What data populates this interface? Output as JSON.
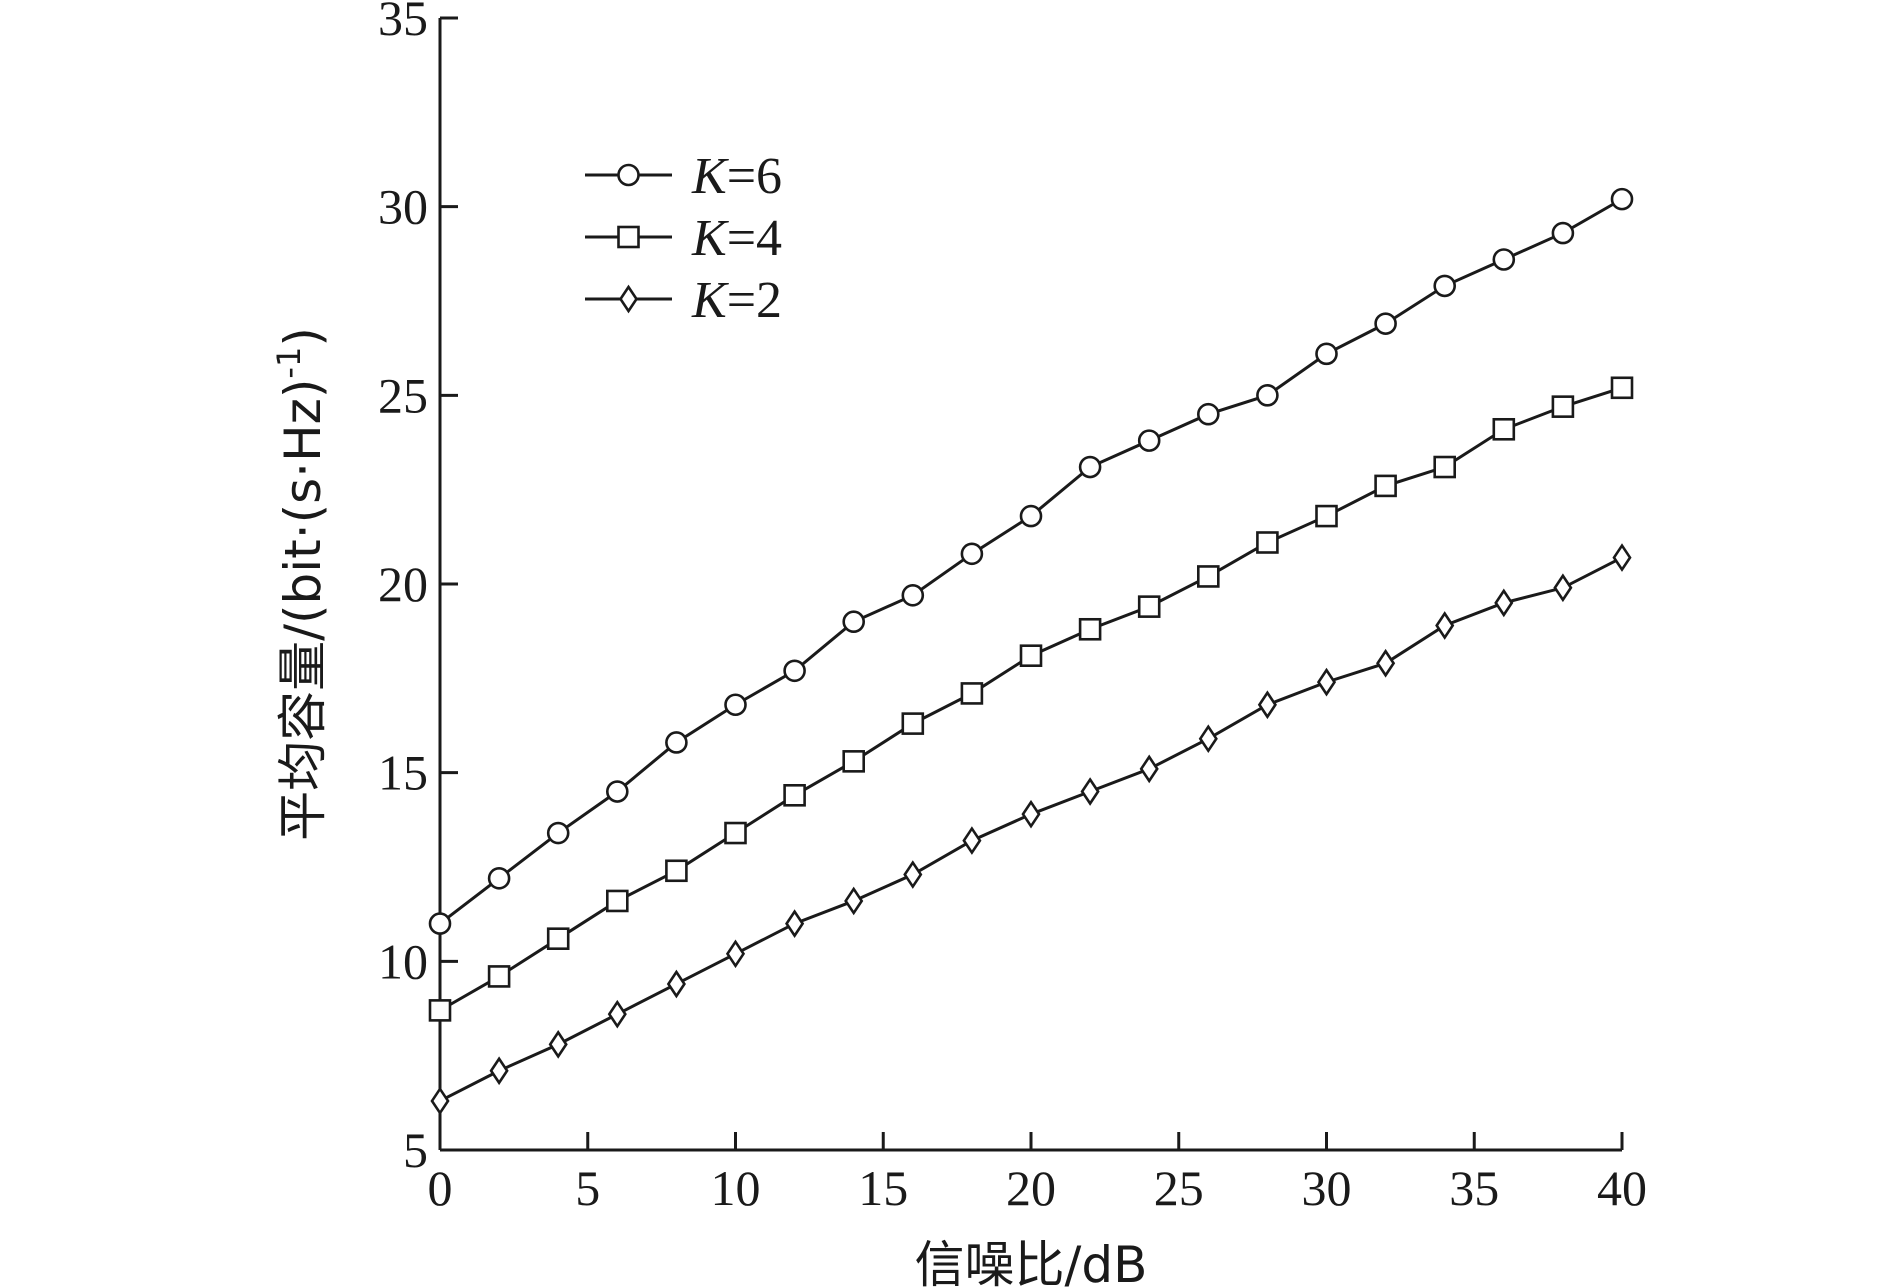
{
  "chart_data": {
    "type": "line",
    "xlabel": "信噪比/dB",
    "ylabel_main": "平均容量/(bit·(s·Hz)",
    "ylabel_sup": "-1",
    "ylabel_close": ")",
    "xlim": [
      0,
      40
    ],
    "ylim": [
      5,
      35
    ],
    "x_ticks": [
      0,
      5,
      10,
      15,
      20,
      25,
      30,
      35,
      40
    ],
    "y_ticks": [
      5,
      10,
      15,
      20,
      25,
      30,
      35
    ],
    "grid": false,
    "legend_position": "top-left",
    "x": [
      0,
      2,
      4,
      6,
      8,
      10,
      12,
      14,
      16,
      18,
      20,
      22,
      24,
      26,
      28,
      30,
      32,
      34,
      36,
      38,
      40
    ],
    "series": [
      {
        "name_var": "K",
        "name_rest": "=6",
        "marker": "circle",
        "values": [
          11.0,
          12.2,
          13.4,
          14.5,
          15.8,
          16.8,
          17.7,
          19.0,
          19.7,
          20.8,
          21.8,
          23.1,
          23.8,
          24.5,
          25.0,
          26.1,
          26.9,
          27.9,
          28.6,
          29.3,
          30.2
        ]
      },
      {
        "name_var": "K",
        "name_rest": "=4",
        "marker": "square",
        "values": [
          8.7,
          9.6,
          10.6,
          11.6,
          12.4,
          13.4,
          14.4,
          15.3,
          16.3,
          17.1,
          18.1,
          18.8,
          19.4,
          20.2,
          21.1,
          21.8,
          22.6,
          23.1,
          24.1,
          24.7,
          25.2
        ]
      },
      {
        "name_var": "K",
        "name_rest": "=2",
        "marker": "diamond",
        "values": [
          6.3,
          7.1,
          7.8,
          8.6,
          9.4,
          10.2,
          11.0,
          11.6,
          12.3,
          13.2,
          13.9,
          14.5,
          15.1,
          15.9,
          16.8,
          17.4,
          17.9,
          18.9,
          19.5,
          19.9,
          20.7
        ]
      }
    ]
  }
}
